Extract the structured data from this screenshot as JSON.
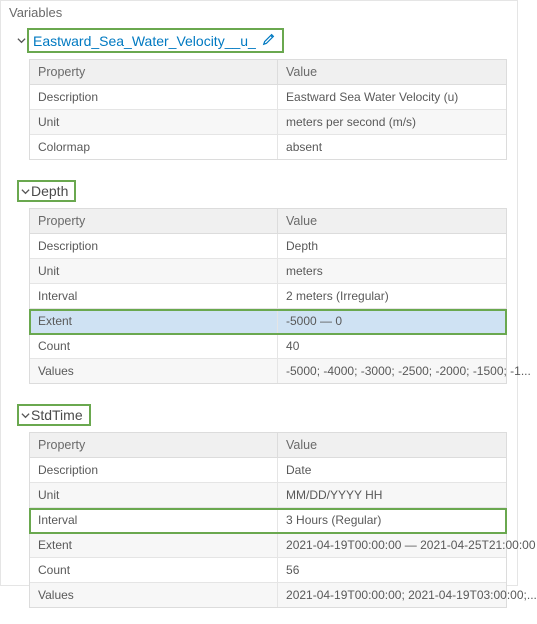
{
  "panel_title": "Variables",
  "variable": {
    "name": "Eastward_Sea_Water_Velocity__u_",
    "header_property": "Property",
    "header_value": "Value",
    "rows": [
      {
        "prop": "Description",
        "val": "Eastward Sea Water Velocity (u)"
      },
      {
        "prop": "Unit",
        "val": "meters per second (m/s)"
      },
      {
        "prop": "Colormap",
        "val": "absent"
      }
    ]
  },
  "depth": {
    "title": "Depth",
    "header_property": "Property",
    "header_value": "Value",
    "rows": [
      {
        "prop": "Description",
        "val": "Depth"
      },
      {
        "prop": "Unit",
        "val": "meters"
      },
      {
        "prop": "Interval",
        "val": "2 meters (Irregular)"
      },
      {
        "prop": "Extent",
        "val": "-5000 — 0"
      },
      {
        "prop": "Count",
        "val": "40"
      },
      {
        "prop": "Values",
        "val": "-5000; -4000; -3000; -2500; -2000; -1500; -1..."
      }
    ],
    "highlight_row_index": 3
  },
  "stdtime": {
    "title": "StdTime",
    "header_property": "Property",
    "header_value": "Value",
    "rows": [
      {
        "prop": "Description",
        "val": "Date"
      },
      {
        "prop": "Unit",
        "val": "MM/DD/YYYY HH"
      },
      {
        "prop": "Interval",
        "val": "3 Hours (Regular)"
      },
      {
        "prop": "Extent",
        "val": "2021-04-19T00:00:00 — 2021-04-25T21:00:00"
      },
      {
        "prop": "Count",
        "val": "56"
      },
      {
        "prop": "Values",
        "val": "2021-04-19T00:00:00; 2021-04-19T03:00:00;..."
      }
    ],
    "highlight_row_index": 2
  },
  "colors": {
    "accent_blue": "#0079c1",
    "highlight_green": "#6aa84f",
    "selected_row_bg": "#cfe2f3"
  }
}
